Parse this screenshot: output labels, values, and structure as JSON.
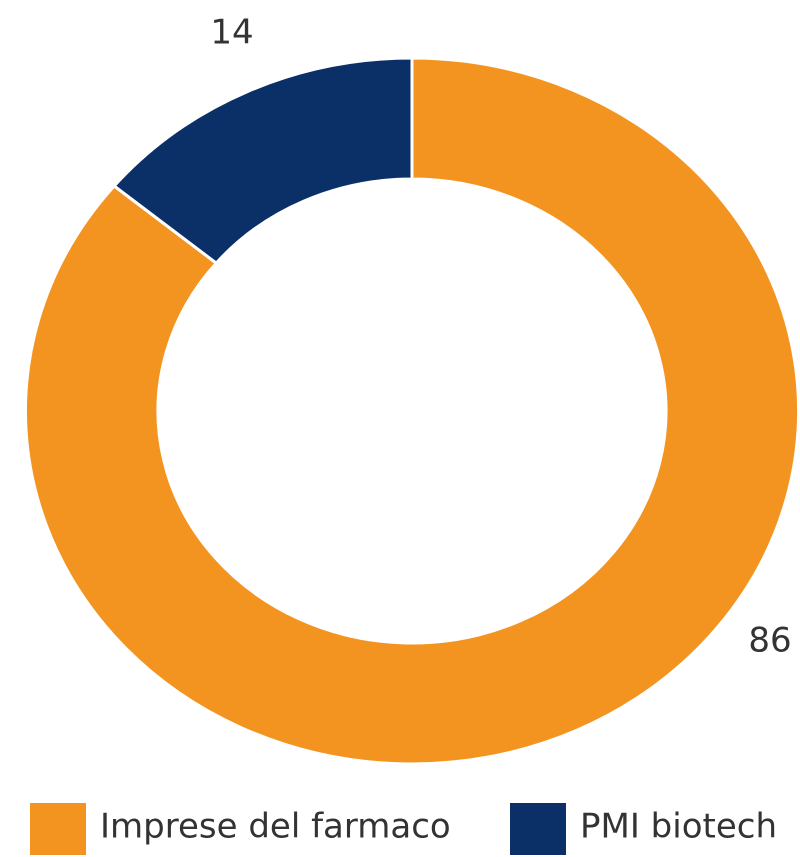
{
  "chart_data": {
    "type": "donut",
    "categories": [
      "Imprese del farmaco",
      "PMI biotech"
    ],
    "values": [
      86,
      14
    ],
    "colors": [
      "#f39420",
      "#0b3068"
    ]
  }
}
